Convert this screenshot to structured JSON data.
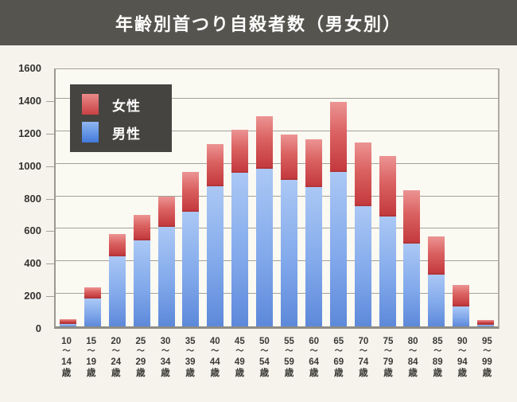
{
  "header": {
    "title": "年齢別首つり自殺者数（男女別）"
  },
  "legend": {
    "female_label": "女性",
    "male_label": "男性"
  },
  "colors": {
    "header_bg": "#56544e",
    "page_bg": "#f5f3ec",
    "plot_bg": "#faf9f2",
    "grid": "#a3a19a",
    "baseline": "#8e8c85",
    "legend_bg": "#454440",
    "female_top": "#ec9493",
    "female_bottom": "#c43a3e",
    "male_top": "#abc8f5",
    "male_bottom": "#5d89da",
    "text": "#34332f"
  },
  "chart_data": {
    "type": "bar",
    "stacked": true,
    "title": "年齢別首つり自殺者数（男女別）",
    "categories": [
      "10〜14歳",
      "15〜19歳",
      "20〜24歳",
      "25〜29歳",
      "30〜34歳",
      "35〜39歳",
      "40〜44歳",
      "45〜49歳",
      "50〜54歳",
      "55〜59歳",
      "60〜64歳",
      "65〜69歳",
      "70〜74歳",
      "75〜79歳",
      "80〜84歳",
      "85〜89歳",
      "90〜94歳",
      "95〜99歳"
    ],
    "category_parts": [
      {
        "from": "10",
        "to": "14"
      },
      {
        "from": "15",
        "to": "19"
      },
      {
        "from": "20",
        "to": "24"
      },
      {
        "from": "25",
        "to": "29"
      },
      {
        "from": "30",
        "to": "34"
      },
      {
        "from": "35",
        "to": "39"
      },
      {
        "from": "40",
        "to": "44"
      },
      {
        "from": "45",
        "to": "49"
      },
      {
        "from": "50",
        "to": "54"
      },
      {
        "from": "55",
        "to": "59"
      },
      {
        "from": "60",
        "to": "64"
      },
      {
        "from": "65",
        "to": "69"
      },
      {
        "from": "70",
        "to": "74"
      },
      {
        "from": "75",
        "to": "79"
      },
      {
        "from": "80",
        "to": "84"
      },
      {
        "from": "85",
        "to": "89"
      },
      {
        "from": "90",
        "to": "94"
      },
      {
        "from": "95",
        "to": "99"
      }
    ],
    "tilde": "〜",
    "age_suffix": "歳",
    "series": [
      {
        "name": "男性",
        "role": "male",
        "values": [
          15,
          170,
          430,
          530,
          610,
          705,
          860,
          945,
          970,
          900,
          855,
          950,
          740,
          675,
          510,
          320,
          120,
          10
        ]
      },
      {
        "name": "女性",
        "role": "female",
        "values": [
          30,
          70,
          140,
          155,
          190,
          245,
          260,
          265,
          320,
          280,
          295,
          430,
          390,
          370,
          325,
          235,
          135,
          30
        ]
      }
    ],
    "totals": [
      45,
      240,
      570,
      685,
      800,
      950,
      1120,
      1210,
      1290,
      1180,
      1150,
      1380,
      1130,
      1045,
      835,
      555,
      255,
      40
    ],
    "ylim": [
      0,
      1600
    ],
    "yticks": [
      0,
      200,
      400,
      600,
      800,
      1000,
      1200,
      1400,
      1600
    ],
    "grid": true,
    "legend_position": "top-left"
  }
}
